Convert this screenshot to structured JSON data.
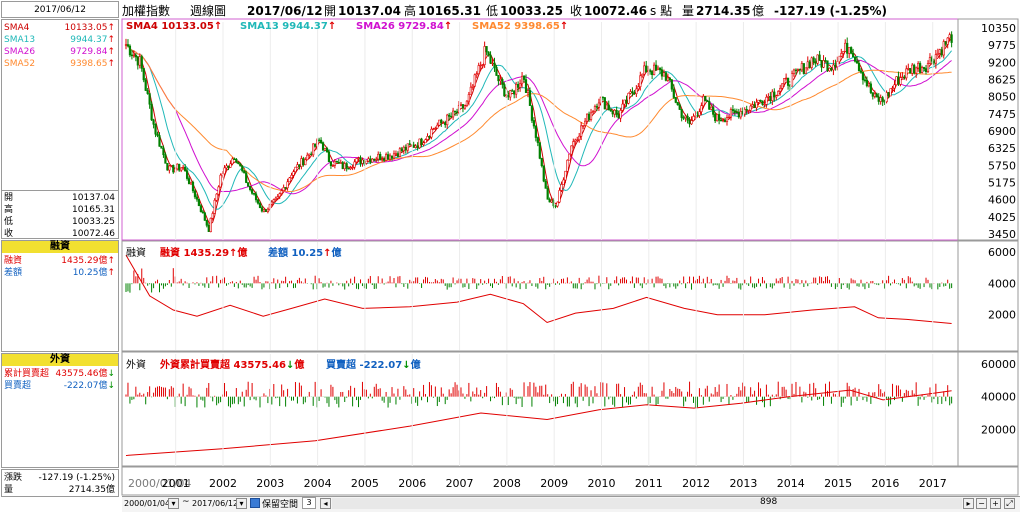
{
  "header": {
    "index_name": "加權指數",
    "period": "週線圖",
    "date": "2017/06/12",
    "open_label": "開",
    "open": "10137.04",
    "high_label": "高",
    "high": "10165.31",
    "low_label": "低",
    "low": "10033.25",
    "close_label": "收",
    "close": "10072.46",
    "unit": "s 點",
    "vol_label": "量",
    "vol": "2714.35",
    "vol_unit": "億",
    "change": "-127.19 (-1.25%)"
  },
  "left": {
    "date_box": "2017/06/12",
    "sma": [
      {
        "label": "SMA4",
        "value": "10133.05",
        "color": "#cc0000"
      },
      {
        "label": "SMA13",
        "value": "9944.37",
        "color": "#20b8b8"
      },
      {
        "label": "SMA26",
        "value": "9729.84",
        "color": "#d010d0"
      },
      {
        "label": "SMA52",
        "value": "9398.65",
        "color": "#ff8a30"
      }
    ],
    "ohlc": [
      {
        "label": "開",
        "value": "10137.04"
      },
      {
        "label": "高",
        "value": "10165.31"
      },
      {
        "label": "低",
        "value": "10033.25"
      },
      {
        "label": "收",
        "value": "10072.46"
      }
    ],
    "margin_title": "融資",
    "margin_rows": [
      {
        "label": "融資",
        "value": "1435.29億"
      },
      {
        "label": "差額",
        "value": "10.25億"
      }
    ],
    "foreign_title": "外資",
    "foreign_rows": [
      {
        "label": "累計買賣超",
        "value": "43575.46億"
      },
      {
        "label": "買賣超",
        "value": "-222.07億"
      }
    ],
    "bottom_rows": [
      {
        "label": "漲跌",
        "value": "-127.19 (-1.25%)"
      },
      {
        "label": "量",
        "value": "2714.35億"
      }
    ]
  },
  "price_panel": {
    "legend": [
      {
        "text": "SMA4 10133.05",
        "color": "#cc0000"
      },
      {
        "text": "SMA13 9944.37",
        "color": "#20b8b8"
      },
      {
        "text": "SMA26 9729.84",
        "color": "#d010d0"
      },
      {
        "text": "SMA52 9398.65",
        "color": "#ff8a30"
      }
    ]
  },
  "margin_panel": {
    "title": "融資",
    "label1": "融資",
    "value1": "1435.29",
    "unit1": "億",
    "label2": "差額",
    "value2": "10.25",
    "unit2": "億"
  },
  "foreign_panel": {
    "title": "外資",
    "label1": "外資累計買賣超",
    "value1": "43575.46",
    "unit1": "億",
    "label2": "買賣超",
    "value2": "-222.07",
    "unit2": "億"
  },
  "xaxis": {
    "start_label": "2000/01/04",
    "years": [
      "2001",
      "2002",
      "2003",
      "2004",
      "2005",
      "2006",
      "2007",
      "2008",
      "2009",
      "2010",
      "2011",
      "2012",
      "2013",
      "2014",
      "2015",
      "2016",
      "2017"
    ]
  },
  "toolbar": {
    "from_date": "2000/01/04",
    "tilde": "~",
    "to_date": "2017/06/12",
    "space_label": "保留空間",
    "space_value": "3",
    "count": "898"
  },
  "chart_data": [
    {
      "type": "line",
      "name": "加權指數 週線",
      "ylim": [
        3450,
        10350
      ],
      "yticks": [
        10350,
        9775,
        9200,
        8625,
        8050,
        7475,
        6900,
        6325,
        5750,
        5175,
        4600,
        4025,
        3450
      ],
      "x": [
        2000.0,
        2000.3,
        2000.6,
        2000.9,
        2001.2,
        2001.5,
        2001.75,
        2002.0,
        2002.3,
        2002.6,
        2002.9,
        2003.2,
        2003.5,
        2003.8,
        2004.1,
        2004.3,
        2004.6,
        2004.9,
        2005.2,
        2005.6,
        2005.9,
        2006.2,
        2006.5,
        2006.9,
        2007.2,
        2007.6,
        2007.9,
        2008.1,
        2008.4,
        2008.7,
        2008.9,
        2009.1,
        2009.4,
        2009.7,
        2010.0,
        2010.4,
        2010.7,
        2011.0,
        2011.4,
        2011.7,
        2011.9,
        2012.2,
        2012.5,
        2012.9,
        2013.3,
        2013.7,
        2014.1,
        2014.5,
        2014.9,
        2015.3,
        2015.6,
        2015.8,
        2016.0,
        2016.3,
        2016.6,
        2016.9,
        2017.2,
        2017.45
      ],
      "values": [
        9800,
        9200,
        7000,
        5600,
        5700,
        4600,
        3600,
        5400,
        6100,
        5000,
        4200,
        4600,
        5500,
        6000,
        6600,
        5900,
        5700,
        5900,
        6000,
        6100,
        6300,
        6500,
        7000,
        7400,
        7800,
        9600,
        8500,
        8000,
        8800,
        6500,
        4600,
        4400,
        6400,
        7200,
        8000,
        7400,
        8200,
        9000,
        8800,
        7600,
        7100,
        7900,
        7300,
        7500,
        7800,
        8200,
        8700,
        9300,
        9100,
        9800,
        8700,
        8000,
        7900,
        8600,
        9000,
        9100,
        9600,
        10072
      ]
    },
    {
      "type": "bar",
      "name": "融資",
      "unit": "億",
      "ylim": [
        0,
        6000
      ],
      "yticks": [
        6000,
        4000,
        2000
      ],
      "last_value": 1435.29,
      "last_diff": 10.25
    },
    {
      "type": "bar",
      "name": "外資買賣超",
      "unit": "億",
      "ylim": [
        0,
        60000
      ],
      "yticks": [
        60000,
        40000,
        20000
      ],
      "cumulative_last": 43575.46,
      "net_last": -222.07
    }
  ]
}
